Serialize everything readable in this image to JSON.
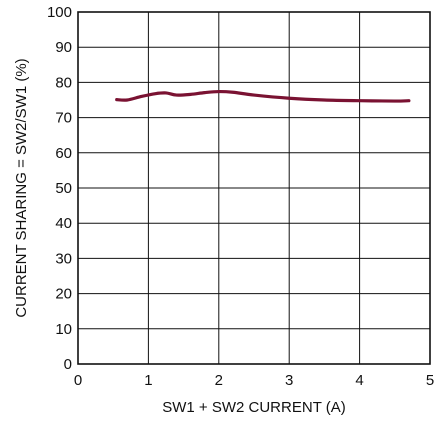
{
  "chart_data": {
    "type": "line",
    "xlabel": "SW1 + SW2 CURRENT (A)",
    "ylabel": "CURRENT SHARING = SW2/SW1 (%)",
    "xlim": [
      0,
      5
    ],
    "ylim": [
      0,
      100
    ],
    "xticks": [
      0,
      1,
      2,
      3,
      4,
      5
    ],
    "yticks": [
      0,
      10,
      20,
      30,
      40,
      50,
      60,
      70,
      80,
      90,
      100
    ],
    "grid": true,
    "legend": "none",
    "series": [
      {
        "color": "#7a1232",
        "x": [
          0.55,
          0.7,
          0.9,
          1.1,
          1.25,
          1.4,
          1.6,
          1.8,
          2.0,
          2.2,
          2.5,
          3.0,
          3.5,
          4.0,
          4.5,
          4.7
        ],
        "y": [
          75.1,
          75.0,
          76.0,
          76.8,
          77.0,
          76.4,
          76.6,
          77.1,
          77.4,
          77.2,
          76.4,
          75.5,
          75.0,
          74.8,
          74.7,
          74.8
        ]
      }
    ]
  }
}
